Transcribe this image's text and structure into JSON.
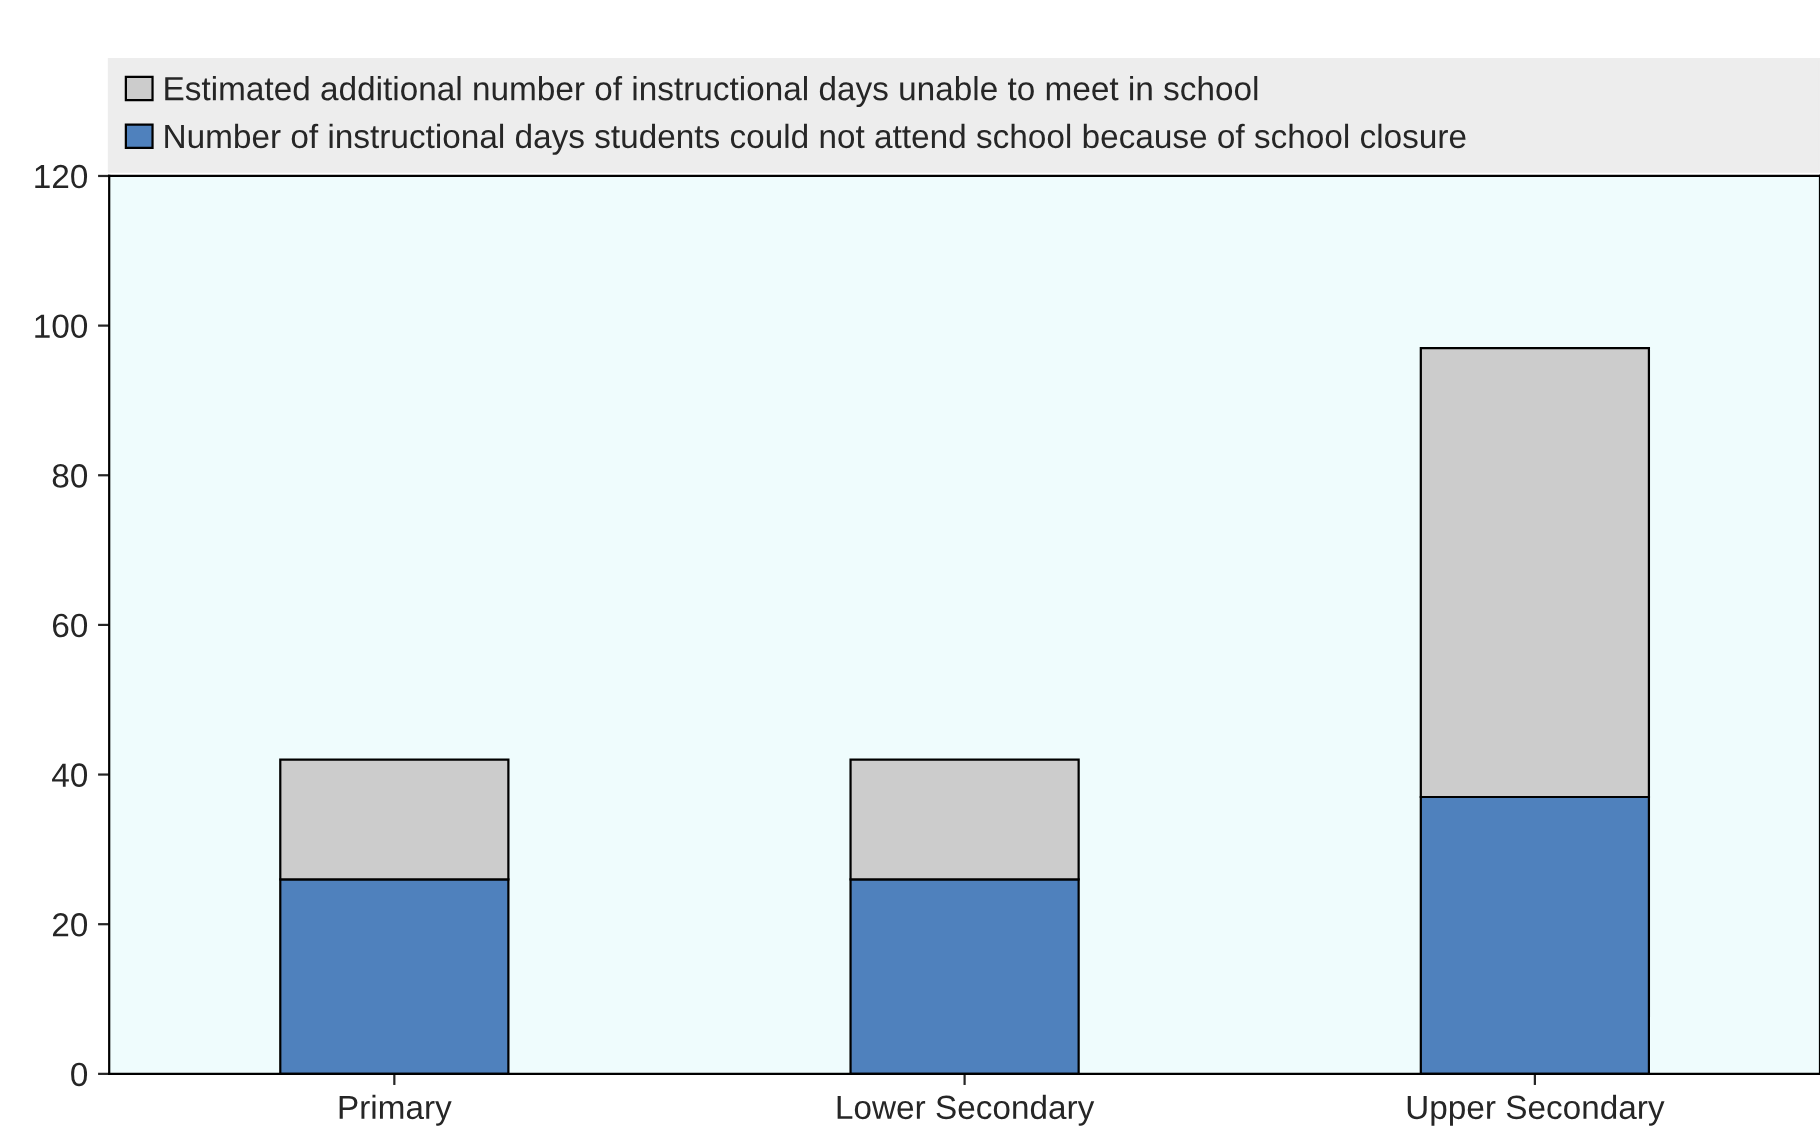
{
  "chart_data": {
    "type": "bar",
    "stacked": true,
    "categories": [
      "Primary",
      "Lower Secondary",
      "Upper Secondary"
    ],
    "series": [
      {
        "name": "Number of instructional days students could not attend school because of school closure",
        "color": "#4f81bd",
        "values": [
          26,
          26,
          37
        ]
      },
      {
        "name": "Estimated additional number of instructional days unable to meet in school",
        "color": "#cccccc",
        "values": [
          16,
          16,
          60
        ]
      }
    ],
    "ylim": [
      0,
      120
    ],
    "yticks": [
      0,
      20,
      40,
      60,
      80,
      100,
      120
    ],
    "grid": false,
    "legend": "top"
  }
}
